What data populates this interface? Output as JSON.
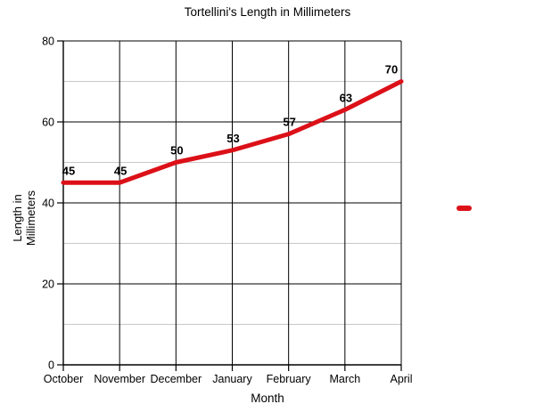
{
  "chart_data": {
    "type": "line",
    "title": "Tortellini's Length in Millimeters",
    "xlabel": "Month",
    "ylabel": "Length in Millimeters",
    "ylabel_lines": [
      "Length in",
      "Millimeters"
    ],
    "categories": [
      "October",
      "November",
      "December",
      "January",
      "February",
      "March",
      "April"
    ],
    "values": [
      45,
      45,
      50,
      53,
      57,
      63,
      70
    ],
    "data_labels": [
      "45",
      "45",
      "50",
      "53",
      "57",
      "63",
      "70"
    ],
    "ylim": [
      0,
      80
    ],
    "yticks": [
      0,
      20,
      40,
      60,
      80
    ],
    "y_minor_step": 10,
    "grid": "major-and-minor-on",
    "legend_position": "right",
    "legend": {
      "marker": "red-dash",
      "label": ""
    },
    "line_color": "#dc1018"
  },
  "colors": {
    "line": "#dc1018",
    "grid_major": "#000000",
    "grid_minor": "#c8c8c8",
    "axis": "#000000",
    "text": "#000000",
    "background": "#ffffff"
  }
}
